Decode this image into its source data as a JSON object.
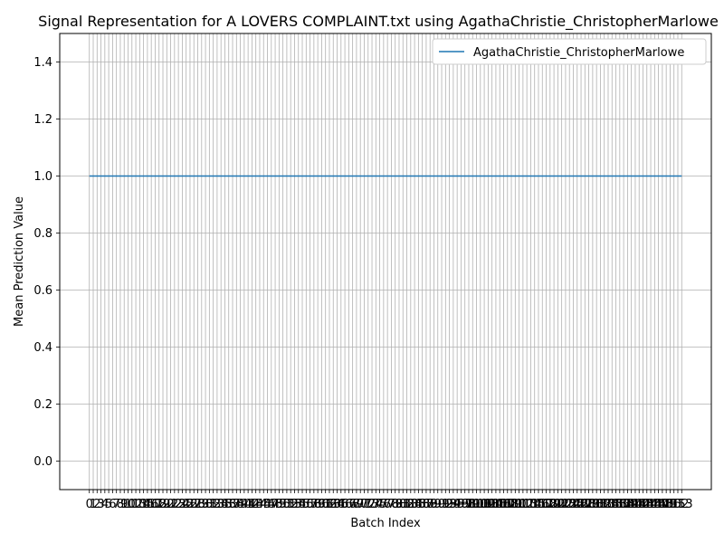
{
  "chart_data": {
    "type": "line",
    "title": "Signal Representation for A LOVERS COMPLAINT.txt using AgathaChristie_ChristopherMarlowe",
    "xlabel": "Batch Index",
    "ylabel": "Mean Prediction Value",
    "x_start": 0,
    "x_end": 153,
    "xlim": [
      -7.65,
      160.65
    ],
    "ylim": [
      -0.1,
      1.5
    ],
    "yticks": [
      "0.0",
      "0.2",
      "0.4",
      "0.6",
      "0.8",
      "1.0",
      "1.2",
      "1.4"
    ],
    "grid": true,
    "legend_position": "upper right",
    "series": [
      {
        "name": "AgathaChristie_ChristopherMarlowe",
        "color": "#1f77b4",
        "constant_value": 1.0
      }
    ]
  }
}
